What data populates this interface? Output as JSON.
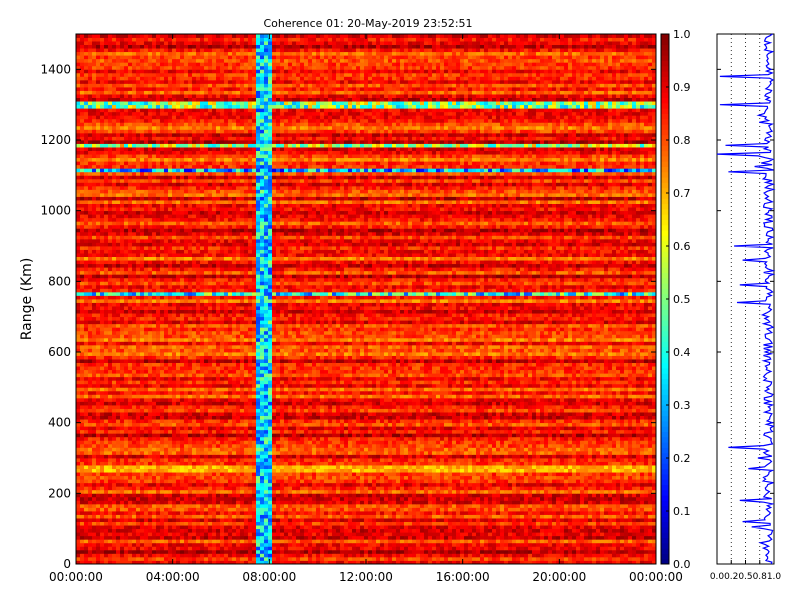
{
  "chart_data": [
    {
      "type": "heatmap",
      "title": "Coherence 01: 20-May-2019 23:52:51",
      "xlabel": "",
      "ylabel": "Range (Km)",
      "x_tick_labels": [
        "00:00:00",
        "04:00:00",
        "08:00:00",
        "12:00:00",
        "16:00:00",
        "20:00:00",
        "00:00:00"
      ],
      "y_tick_labels": [
        "0",
        "200",
        "400",
        "600",
        "800",
        "1000",
        "1200",
        "1400"
      ],
      "xlim_hours": [
        0,
        24
      ],
      "ylim": [
        0,
        1500
      ],
      "color_scale": "jet",
      "colorbar_ticks": [
        "0.0",
        "0.1",
        "0.2",
        "0.3",
        "0.4",
        "0.5",
        "0.6",
        "0.7",
        "0.8",
        "0.9",
        "1.0"
      ],
      "colorbar_range": [
        0,
        1
      ],
      "typical_coherence": 0.85,
      "low_coherence_time_band_hours": [
        7.5,
        8.0
      ],
      "low_coherence_time_band_value": 0.35,
      "low_coherence_range_rows_km": [
        {
          "range": 1300,
          "value": 0.5
        },
        {
          "range": 1185,
          "value": 0.55
        },
        {
          "range": 1115,
          "value": 0.3
        },
        {
          "range": 765,
          "value": 0.4
        },
        {
          "range": 270,
          "value": 0.7
        }
      ]
    },
    {
      "type": "line",
      "title": "",
      "xlabel": "",
      "ylabel": "",
      "x_tick_labels": [
        "0.0",
        "0.2",
        "0.5",
        "0.8",
        "1.0"
      ],
      "xlim": [
        0,
        1
      ],
      "ylim": [
        0,
        1500
      ],
      "series_color": "#0000ff",
      "typical_value": 0.9,
      "dips": [
        {
          "range": 1160,
          "value": 0.0
        },
        {
          "range": 1380,
          "value": 0.05
        },
        {
          "range": 1300,
          "value": 0.05
        },
        {
          "range": 1185,
          "value": 0.15
        },
        {
          "range": 1110,
          "value": 0.2
        },
        {
          "range": 900,
          "value": 0.3
        },
        {
          "range": 860,
          "value": 0.45
        },
        {
          "range": 790,
          "value": 0.4
        },
        {
          "range": 740,
          "value": 0.35
        },
        {
          "range": 330,
          "value": 0.2
        },
        {
          "range": 270,
          "value": 0.55
        },
        {
          "range": 180,
          "value": 0.4
        },
        {
          "range": 120,
          "value": 0.45
        }
      ]
    }
  ]
}
